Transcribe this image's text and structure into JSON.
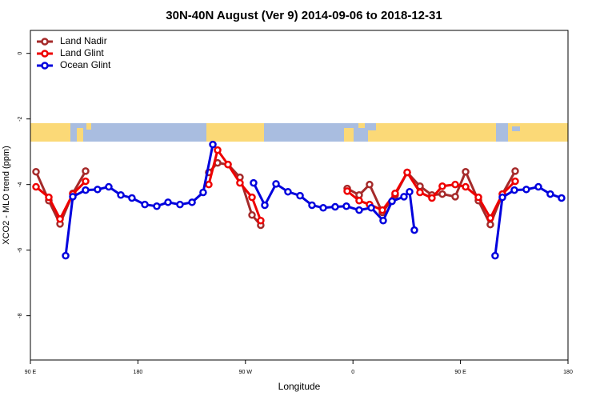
{
  "chart_data": {
    "type": "line",
    "title": "30N-40N August (Ver 9)   2014-09-06 to 2018-12-31",
    "x_label": "Longitude",
    "y_label": "XCO2 - MLO trend (ppm)",
    "xlim": [
      90,
      540
    ],
    "xticks": [
      {
        "value": 90,
        "label": "90 E"
      },
      180,
      {
        "value": 270,
        "label": "90 W"
      },
      {
        "value": 360,
        "label": "0"
      },
      {
        "value": 450,
        "label": "90 E"
      },
      {
        "value": 540,
        "label": "180"
      }
    ],
    "ylim": [
      -9.35,
      0.7
    ],
    "yticks": [
      0,
      -2,
      -4,
      -6,
      -8
    ],
    "legend": "top-left",
    "series": [
      {
        "name": "Land Nadir",
        "color": "#a52a2a",
        "x": [
          94.7,
          105.4,
          114.8,
          125.5,
          136.2,
          null,
          239.3,
          246.7,
          255.4,
          265.4,
          275.5,
          282.8,
          null,
          355.2,
          365.2,
          373.9,
          384.6,
          395.3,
          405.4,
          416.1,
          426.1,
          434.8,
          445.6,
          454.3,
          465.0,
          475.0,
          485.1,
          495.8
        ],
        "values": [
          -3.61,
          -4.49,
          -5.2,
          -4.27,
          -3.59,
          null,
          -3.63,
          -3.34,
          -3.39,
          -3.78,
          -4.93,
          -5.24,
          null,
          -4.12,
          -4.32,
          -4.0,
          -4.85,
          -4.32,
          -3.63,
          -4.05,
          -4.32,
          -4.29,
          -4.37,
          -3.61,
          -4.49,
          -5.22,
          -4.29,
          -3.59
        ]
      },
      {
        "name": "Land Glint",
        "color": "#ee0000",
        "x": [
          94.7,
          105.4,
          114.8,
          125.5,
          136.2,
          null,
          239.3,
          246.7,
          255.4,
          265.4,
          275.5,
          282.8,
          null,
          355.2,
          365.2,
          373.9,
          384.6,
          395.3,
          405.4,
          416.1,
          426.1,
          434.8,
          445.6,
          454.3,
          465.0,
          475.0,
          485.1,
          495.8
        ],
        "values": [
          -4.07,
          -4.39,
          -5.05,
          -4.29,
          -3.9,
          null,
          -4.0,
          -2.95,
          -3.39,
          -3.95,
          -4.39,
          -5.1,
          null,
          -4.2,
          -4.49,
          -4.61,
          -4.78,
          -4.27,
          -3.63,
          -4.24,
          -4.41,
          -4.05,
          -4.0,
          -4.07,
          -4.39,
          -5.02,
          -4.29,
          -3.9
        ]
      },
      {
        "name": "Ocean Glint",
        "color": "#0000dd",
        "x": [
          119.5,
          125.5,
          136.2,
          146.2,
          155.6,
          165.7,
          175.0,
          185.8,
          195.8,
          205.2,
          215.2,
          225.3,
          234.6,
          242.7,
          null,
          276.8,
          286.2,
          295.6,
          305.6,
          315.7,
          325.7,
          335.1,
          345.1,
          354.5,
          365.2,
          375.3,
          385.3,
          392.7,
          402.7,
          407.4,
          411.4,
          null,
          479.0,
          485.1,
          495.1,
          505.1,
          515.2,
          525.2,
          534.6
        ],
        "values": [
          -6.17,
          -4.37,
          -4.17,
          -4.15,
          -4.07,
          -4.32,
          -4.41,
          -4.61,
          -4.66,
          -4.54,
          -4.61,
          -4.54,
          -4.24,
          -2.78,
          null,
          -3.95,
          -4.63,
          -3.98,
          -4.22,
          -4.34,
          -4.63,
          -4.71,
          -4.68,
          -4.66,
          -4.78,
          -4.71,
          -5.1,
          -4.51,
          -4.37,
          -4.22,
          -5.39,
          null,
          -6.17,
          -4.39,
          -4.17,
          -4.15,
          -4.07,
          -4.29,
          -4.41
        ]
      }
    ]
  }
}
